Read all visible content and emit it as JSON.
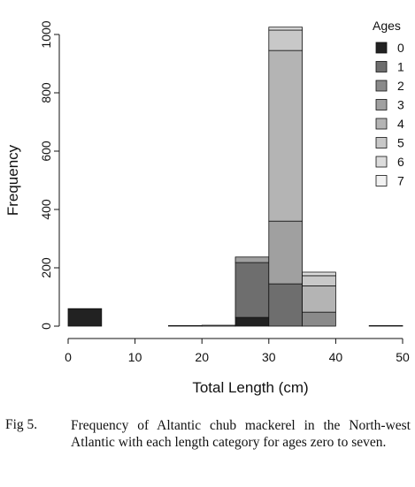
{
  "chart_data": {
    "type": "histogram",
    "x_label": "Total Length (cm)",
    "y_label": "Frequency",
    "legend_title": "Ages",
    "legend": "top-right",
    "bins": [
      0,
      5,
      10,
      15,
      20,
      25,
      30,
      35,
      40,
      45,
      50
    ],
    "series": [
      {
        "name": "0",
        "color": "#222222",
        "values": [
          60,
          0,
          0,
          0,
          0,
          30,
          0,
          0,
          0,
          0
        ]
      },
      {
        "name": "1",
        "color": "#6e6e6e",
        "values": [
          0,
          0,
          0,
          0,
          0,
          188,
          145,
          0,
          0,
          0
        ]
      },
      {
        "name": "2",
        "color": "#8a8a8a",
        "values": [
          0,
          0,
          0,
          0,
          0,
          0,
          0,
          48,
          0,
          0
        ]
      },
      {
        "name": "3",
        "color": "#a0a0a0",
        "values": [
          0,
          0,
          0,
          0,
          3,
          19,
          215,
          0,
          0,
          2
        ]
      },
      {
        "name": "4",
        "color": "#b4b4b4",
        "values": [
          0,
          0,
          0,
          2,
          0,
          0,
          585,
          90,
          0,
          0
        ]
      },
      {
        "name": "5",
        "color": "#c8c8c8",
        "values": [
          0,
          0,
          0,
          0,
          0,
          0,
          70,
          35,
          0,
          0
        ]
      },
      {
        "name": "6",
        "color": "#dcdcdc",
        "values": [
          0,
          0,
          0,
          0,
          0,
          0,
          10,
          12,
          0,
          0
        ]
      },
      {
        "name": "7",
        "color": "#f2f2f2",
        "values": [
          0,
          0,
          0,
          0,
          0,
          0,
          0,
          0,
          0,
          0
        ]
      }
    ],
    "xlim": [
      0,
      50
    ],
    "xticks": [
      0,
      10,
      20,
      30,
      40,
      50
    ],
    "ylim": [
      0,
      1000
    ],
    "yticks": [
      0,
      200,
      400,
      600,
      800,
      1000
    ],
    "grid": false
  },
  "caption": {
    "label": "Fig 5.",
    "text": "Frequency of Altantic chub mackerel in the North-west Atlantic with each length category for ages zero to seven."
  }
}
